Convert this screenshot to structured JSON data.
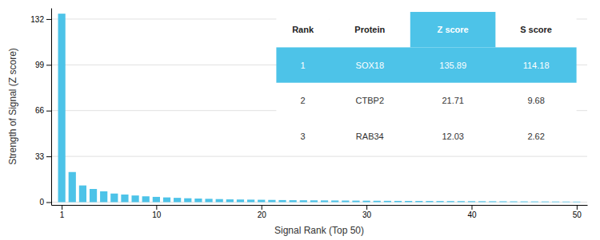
{
  "chart_data": {
    "type": "bar",
    "xlabel": "Signal Rank (Top 50)",
    "ylabel": "Strength of Signal (Z score)",
    "color": "#4DC3E8",
    "x": [
      1,
      2,
      3,
      4,
      5,
      6,
      7,
      8,
      9,
      10,
      11,
      12,
      13,
      14,
      15,
      16,
      17,
      18,
      19,
      20,
      21,
      22,
      23,
      24,
      25,
      26,
      27,
      28,
      29,
      30,
      31,
      32,
      33,
      34,
      35,
      36,
      37,
      38,
      39,
      40,
      41,
      42,
      43,
      44,
      45,
      46,
      47,
      48,
      49,
      50
    ],
    "values": [
      135.89,
      21.71,
      12.03,
      9.5,
      7.8,
      6.2,
      5.5,
      4.8,
      4.2,
      3.8,
      3.4,
      3.1,
      2.8,
      2.6,
      2.4,
      2.2,
      2.0,
      1.9,
      1.8,
      1.7,
      1.6,
      1.5,
      1.4,
      1.35,
      1.3,
      1.25,
      1.2,
      1.15,
      1.1,
      1.05,
      1.0,
      0.95,
      0.9,
      0.87,
      0.84,
      0.81,
      0.78,
      0.75,
      0.72,
      0.69,
      0.66,
      0.63,
      0.6,
      0.57,
      0.54,
      0.51,
      0.48,
      0.45,
      0.42,
      0.39
    ],
    "xlim": [
      0,
      51
    ],
    "xticks": [
      1,
      10,
      20,
      30,
      40,
      50
    ],
    "ylim": [
      -2,
      140
    ],
    "yticks": [
      0,
      33,
      66,
      99,
      132
    ],
    "grid": true,
    "table": {
      "headers": [
        "Rank",
        "Protein",
        "Z score",
        "S score"
      ],
      "rows": [
        [
          "1",
          "SOX18",
          "135.89",
          "114.18"
        ],
        [
          "2",
          "CTBP2",
          "21.71",
          "9.68"
        ],
        [
          "3",
          "RAB34",
          "12.03",
          "2.62"
        ]
      ]
    }
  }
}
